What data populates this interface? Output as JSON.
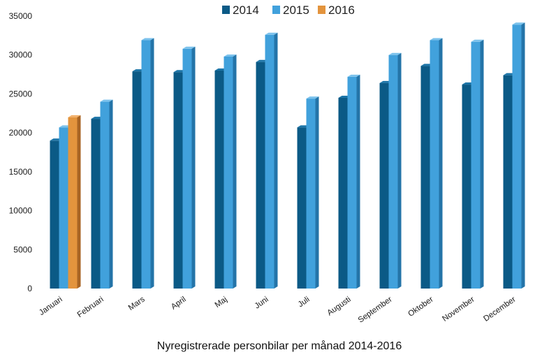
{
  "chart_data": {
    "type": "bar",
    "title": "",
    "caption": "Nyregistrerade personbilar per månad 2014-2016",
    "xlabel": "",
    "ylabel": "",
    "ylim": [
      0,
      35000
    ],
    "yticks": [
      0,
      5000,
      10000,
      15000,
      20000,
      25000,
      30000,
      35000
    ],
    "grid": false,
    "legend_position": "top-center",
    "categories": [
      "Januari",
      "Februari",
      "Mars",
      "April",
      "Maj",
      "Juni",
      "Juli",
      "Augusti",
      "September",
      "Oktober",
      "November",
      "December"
    ],
    "series": [
      {
        "name": "2014",
        "color": "#0b5a86",
        "side_color": "#063a58",
        "top_color": "#1c75a8",
        "values": [
          19000,
          21800,
          27900,
          27800,
          28000,
          29100,
          20700,
          24500,
          26400,
          28600,
          26200,
          27400
        ]
      },
      {
        "name": "2015",
        "color": "#41a1dc",
        "side_color": "#2474a8",
        "top_color": "#7cc2ec",
        "values": [
          20700,
          24000,
          31900,
          30800,
          29800,
          32600,
          24400,
          27200,
          30000,
          31900,
          31700,
          33900
        ]
      },
      {
        "name": "2016",
        "color": "#e3943d",
        "side_color": "#a86424",
        "top_color": "#f2b06a",
        "values": [
          22000,
          null,
          null,
          null,
          null,
          null,
          null,
          null,
          null,
          null,
          null,
          null
        ]
      }
    ]
  }
}
